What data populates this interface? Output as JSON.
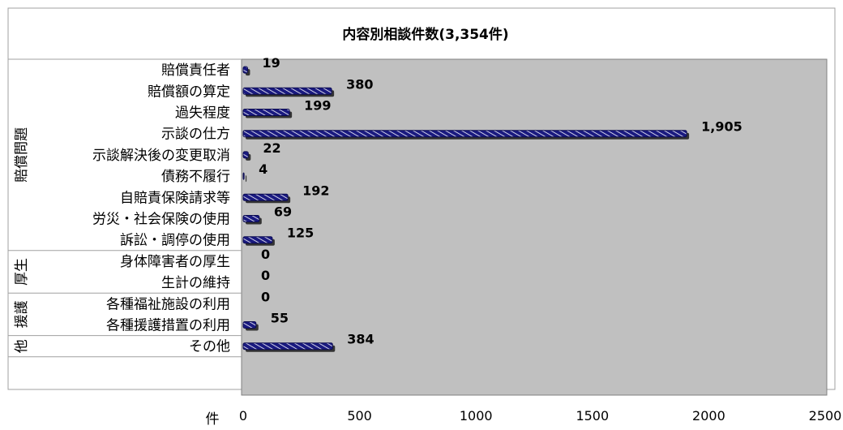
{
  "chart_data": {
    "type": "bar",
    "orientation": "horizontal",
    "title": "内容別相談件数(3,354件)",
    "x_unit_label": "件",
    "xlim": [
      0,
      2500
    ],
    "x_ticks": [
      "0",
      "500",
      "1000",
      "1500",
      "2000",
      "2500"
    ],
    "groups": [
      {
        "label": "賠償問題",
        "start": 0,
        "end": 8
      },
      {
        "label": "厚生",
        "start": 9,
        "end": 10
      },
      {
        "label": "援護",
        "start": 11,
        "end": 12
      },
      {
        "label": "他",
        "start": 13,
        "end": 13
      }
    ],
    "categories": [
      "賠償責任者",
      "賠償額の算定",
      "過失程度",
      "示談の仕方",
      "示談解決後の変更取消",
      "債務不履行",
      "自賠責保険請求等",
      "労災・社会保険の使用",
      "訴訟・調停の使用",
      "身体障害者の厚生",
      "生計の維持",
      "各種福祉施設の利用",
      "各種援護措置の利用",
      "その他"
    ],
    "values": [
      19,
      380,
      199,
      1905,
      22,
      4,
      192,
      69,
      125,
      0,
      0,
      0,
      55,
      384
    ],
    "value_labels": [
      "19",
      "380",
      "199",
      "1,905",
      "22",
      "4",
      "192",
      "69",
      "125",
      "0",
      "0",
      "0",
      "55",
      "384"
    ],
    "colors": {
      "bar": "#1a1a80",
      "plot_bg": "#c0c0c0",
      "axis": "#808080"
    },
    "grid": false,
    "legend": "none"
  }
}
